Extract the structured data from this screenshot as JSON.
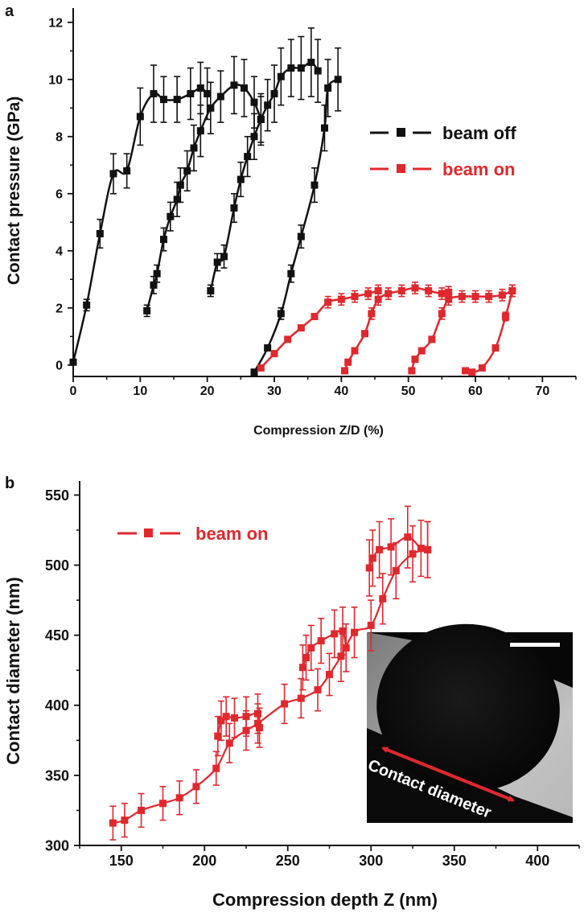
{
  "chart_data": [
    {
      "panel_label": "a",
      "type": "line",
      "xlabel": "Compression Z/D (%)",
      "ylabel": "Contact pressure (GPa)",
      "xlim": [
        0,
        75
      ],
      "ylim": [
        -0.4,
        12.5
      ],
      "xticks": [
        0,
        10,
        20,
        30,
        40,
        50,
        60,
        70
      ],
      "yticks": [
        0,
        2,
        4,
        6,
        8,
        10,
        12
      ],
      "legend_position": "right",
      "grid": false,
      "series": [
        {
          "name": "beam off",
          "color": "#111111",
          "cycle": 1,
          "points": [
            [
              0,
              0.1
            ],
            [
              2,
              2.1
            ],
            [
              4,
              4.6
            ],
            [
              6,
              6.7
            ],
            [
              8,
              6.8
            ],
            [
              10,
              8.7
            ],
            [
              12,
              9.5
            ],
            [
              13.5,
              9.3
            ],
            [
              15.5,
              9.3
            ],
            [
              17.5,
              9.5
            ],
            [
              19,
              9.7
            ],
            [
              20,
              9.5
            ]
          ],
          "errors": [
            0,
            0.2,
            0.5,
            0.7,
            0.6,
            1.0,
            1.0,
            0.8,
            0.8,
            0.9,
            0.9,
            0.9
          ]
        },
        {
          "name": "beam off",
          "color": "#111111",
          "cycle": 2,
          "points": [
            [
              11,
              1.9
            ],
            [
              12,
              2.8
            ],
            [
              12.5,
              3.2
            ],
            [
              13.5,
              4.4
            ],
            [
              14.5,
              5.2
            ],
            [
              15.5,
              5.8
            ],
            [
              16,
              6.3
            ],
            [
              17,
              6.8
            ],
            [
              18,
              7.6
            ],
            [
              19,
              8.2
            ],
            [
              20.5,
              9.0
            ],
            [
              22,
              9.4
            ],
            [
              24,
              9.8
            ],
            [
              25.5,
              9.7
            ],
            [
              27,
              9.2
            ],
            [
              28,
              8.6
            ]
          ],
          "errors": [
            0.2,
            0.3,
            0.3,
            0.4,
            0.5,
            0.6,
            0.6,
            0.7,
            0.8,
            0.9,
            0.9,
            0.9,
            1.0,
            1.0,
            0.9,
            0.9
          ]
        },
        {
          "name": "beam off",
          "color": "#111111",
          "cycle": 3,
          "points": [
            [
              20.5,
              2.6
            ],
            [
              21.5,
              3.6
            ],
            [
              22.5,
              3.8
            ],
            [
              24,
              5.5
            ],
            [
              25,
              6.5
            ],
            [
              26,
              7.3
            ],
            [
              27,
              8.0
            ],
            [
              28,
              8.6
            ],
            [
              29,
              9.1
            ],
            [
              30,
              9.5
            ],
            [
              31,
              10.1
            ],
            [
              32.5,
              10.4
            ],
            [
              34,
              10.4
            ],
            [
              35.5,
              10.6
            ],
            [
              36.5,
              10.3
            ]
          ],
          "errors": [
            0.2,
            0.3,
            0.4,
            0.5,
            0.6,
            0.7,
            0.8,
            0.8,
            0.9,
            1.0,
            1.0,
            1.0,
            1.1,
            1.2,
            1.1
          ]
        },
        {
          "name": "beam off",
          "color": "#111111",
          "cycle": 4,
          "points": [
            [
              27,
              -0.25
            ],
            [
              29,
              0.6
            ],
            [
              31,
              1.8
            ],
            [
              32.5,
              3.2
            ],
            [
              34,
              4.5
            ],
            [
              36,
              6.3
            ],
            [
              37.5,
              8.3
            ],
            [
              38,
              9.7
            ],
            [
              39.5,
              10.0
            ]
          ],
          "errors": [
            0.1,
            0.1,
            0.2,
            0.3,
            0.4,
            0.6,
            0.8,
            1.0,
            1.1
          ]
        },
        {
          "name": "beam on",
          "color": "#e0282d",
          "cycle": 1,
          "points": [
            [
              28,
              -0.1
            ],
            [
              30,
              0.4
            ],
            [
              32,
              0.9
            ],
            [
              34,
              1.3
            ],
            [
              36,
              1.7
            ],
            [
              38,
              2.2
            ],
            [
              40,
              2.3
            ],
            [
              42,
              2.4
            ],
            [
              44,
              2.5
            ],
            [
              45.5,
              2.6
            ]
          ],
          "errors": [
            0.05,
            0.05,
            0.05,
            0.1,
            0.1,
            0.2,
            0.2,
            0.2,
            0.2,
            0.2
          ]
        },
        {
          "name": "beam on",
          "color": "#e0282d",
          "cycle": 2,
          "points": [
            [
              40.5,
              -0.2
            ],
            [
              41,
              0.1
            ],
            [
              42,
              0.5
            ],
            [
              43.5,
              1.1
            ],
            [
              44.5,
              1.8
            ],
            [
              45.5,
              2.3
            ],
            [
              47,
              2.5
            ],
            [
              49,
              2.6
            ],
            [
              51,
              2.7
            ],
            [
              53,
              2.6
            ],
            [
              55,
              2.5
            ],
            [
              56,
              2.55
            ]
          ],
          "errors": [
            0.1,
            0.1,
            0.1,
            0.1,
            0.2,
            0.2,
            0.2,
            0.2,
            0.2,
            0.2,
            0.2,
            0.2
          ]
        },
        {
          "name": "beam on",
          "color": "#e0282d",
          "cycle": 3,
          "points": [
            [
              50.5,
              -0.2
            ],
            [
              51,
              0.2
            ],
            [
              52,
              0.5
            ],
            [
              53.5,
              0.9
            ],
            [
              55,
              1.8
            ],
            [
              56,
              2.3
            ],
            [
              58,
              2.4
            ],
            [
              60,
              2.4
            ],
            [
              62,
              2.4
            ],
            [
              64,
              2.45
            ],
            [
              65.5,
              2.6
            ]
          ],
          "errors": [
            0.1,
            0.1,
            0.1,
            0.1,
            0.2,
            0.2,
            0.2,
            0.2,
            0.2,
            0.2,
            0.2
          ]
        },
        {
          "name": "beam on",
          "color": "#e0282d",
          "cycle": 4,
          "points": [
            [
              58.5,
              -0.2
            ],
            [
              59.5,
              -0.25
            ],
            [
              61,
              -0.1
            ],
            [
              63,
              0.6
            ],
            [
              64.5,
              1.7
            ],
            [
              65.5,
              2.6
            ]
          ],
          "errors": [
            0.05,
            0.05,
            0.05,
            0.1,
            0.15,
            0.2
          ]
        }
      ]
    },
    {
      "panel_label": "b",
      "type": "line",
      "xlabel": "Compression depth Z (nm)",
      "ylabel": "Contact diameter (nm)",
      "xlim": [
        125,
        425
      ],
      "ylim": [
        300,
        560
      ],
      "xticks": [
        150,
        200,
        250,
        300,
        350,
        400
      ],
      "yticks": [
        300,
        350,
        400,
        450,
        500,
        550
      ],
      "legend_position": "top-left",
      "grid": false,
      "series": [
        {
          "name": "beam on",
          "color": "#e0282d",
          "points": [
            [
              145,
              316
            ],
            [
              152,
              318
            ],
            [
              162,
              325
            ],
            [
              175,
              330
            ],
            [
              185,
              334
            ],
            [
              195,
              342
            ],
            [
              207,
              355
            ],
            [
              215,
              373
            ],
            [
              225,
              382
            ],
            [
              232,
              387
            ],
            [
              248,
              401
            ],
            [
              258,
              405
            ],
            [
              268,
              411
            ],
            [
              275,
              422
            ],
            [
              282,
              435
            ],
            [
              290,
              452
            ],
            [
              300,
              457
            ],
            [
              307,
              476
            ],
            [
              315,
              496
            ],
            [
              325,
              508
            ],
            [
              334,
              511
            ]
          ],
          "errors": [
            12,
            12,
            12,
            12,
            12,
            12,
            12,
            14,
            14,
            14,
            14,
            14,
            15,
            15,
            18,
            18,
            18,
            18,
            20,
            20,
            20
          ]
        },
        {
          "name": "beam on",
          "color": "#e0282d",
          "points": [
            [
              208,
              378
            ],
            [
              210,
              389
            ],
            [
              213,
              392
            ],
            [
              218,
              391
            ],
            [
              225,
              392
            ],
            [
              232,
              394
            ],
            [
              233,
              384
            ]
          ],
          "errors": [
            14,
            14,
            14,
            14,
            14,
            14,
            14
          ]
        },
        {
          "name": "beam on",
          "color": "#e0282d",
          "points": [
            [
              259,
              427
            ],
            [
              261,
              434
            ],
            [
              264,
              441
            ],
            [
              270,
              446
            ],
            [
              278,
              451
            ],
            [
              283,
              453
            ],
            [
              285,
              441
            ]
          ],
          "errors": [
            16,
            16,
            16,
            16,
            17,
            17,
            17
          ]
        },
        {
          "name": "beam on",
          "color": "#e0282d",
          "points": [
            [
              299,
              498
            ],
            [
              301,
              505
            ],
            [
              305,
              511
            ],
            [
              312,
              513
            ],
            [
              322,
              520
            ],
            [
              330,
              512
            ],
            [
              334,
              511
            ]
          ],
          "errors": [
            20,
            20,
            20,
            20,
            22,
            20,
            20
          ]
        }
      ],
      "inset": {
        "label": "Contact diameter"
      }
    }
  ]
}
